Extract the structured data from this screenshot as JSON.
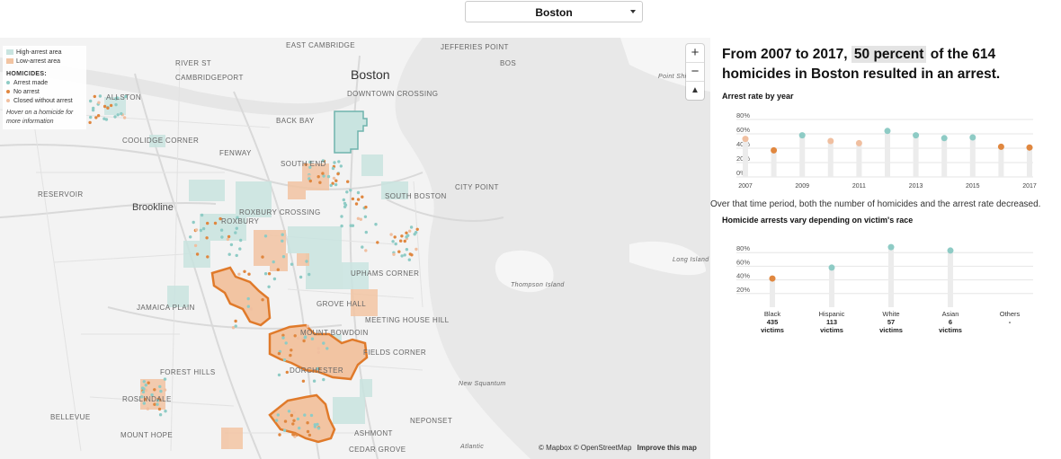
{
  "city_select": {
    "value": "Boston"
  },
  "legend": {
    "high_area": "High-arrest area",
    "low_area": "Low-arrest area",
    "homicides_header": "HOMICIDES:",
    "arrest_made": "Arrest made",
    "no_arrest": "No arrest",
    "closed": "Closed without arrest",
    "hint": "Hover on a homicide for more information"
  },
  "zoom": {
    "in": "+",
    "out": "−",
    "compass": "▲"
  },
  "attribution": {
    "mapbox": "© Mapbox",
    "osm": "© OpenStreetMap",
    "improve": "Improve this map"
  },
  "map_labels": {
    "city": "Boston",
    "brookline": "Brookline",
    "areas": [
      "EAST CAMBRIDGE",
      "JEFFERIES POINT",
      "RIVER ST",
      "CAMBRIDGEPORT",
      "ALLSTON",
      "BACK BAY",
      "DOWNTOWN CROSSING",
      "FENWAY",
      "SOUTH END",
      "SOUTH BOSTON",
      "CITY POINT",
      "ROXBURY",
      "ROXBURY CROSSING",
      "JAMAICA PLAIN",
      "UPHAMS CORNER",
      "GROVE HALL",
      "MEETING HOUSE HILL",
      "MOUNT BOWDOIN",
      "DORCHESTER",
      "FIELDS CORNER",
      "FOREST HILLS",
      "ROSLINDALE",
      "BELLEVUE",
      "MOUNT HOPE",
      "NEPONSET",
      "CEDAR GROVE",
      "ASHMONT",
      "RESERVOIR",
      "COOLIDGE CORNER",
      "BOS"
    ],
    "islands": [
      "Long Island",
      "Thompson Island",
      "Point Shirley",
      "Atlantic",
      "New Squantum"
    ]
  },
  "headline": {
    "prefix": "From 2007 to 2017,",
    "highlight": "50 percent",
    "suffix": "of the 614 homicides in Boston resulted in an arrest."
  },
  "year_chart_title": "Arrest rate by year",
  "trend_note": "Over that time period, both the number of homicides and the arrest rate decreased.",
  "race_chart_title": "Homicide arrests vary depending on victim's race",
  "colors": {
    "arrest": "#8ecbc5",
    "no_arrest": "#e0873f",
    "closed": "#f0bfa0",
    "stem": "#ececec",
    "grid": "#e6e6e6"
  },
  "chart_data": [
    {
      "type": "scatter",
      "title": "Arrest rate by year",
      "x": [
        2007,
        2008,
        2009,
        2010,
        2011,
        2012,
        2013,
        2014,
        2015,
        2016,
        2017
      ],
      "values": [
        53,
        37,
        58,
        50,
        47,
        64,
        58,
        54,
        55,
        42,
        41
      ],
      "status": [
        "closed",
        "no_arrest",
        "arrest",
        "closed",
        "closed",
        "arrest",
        "arrest",
        "arrest",
        "arrest",
        "no_arrest",
        "no_arrest"
      ],
      "x_tick_labels": [
        "2007",
        "2009",
        "2011",
        "2013",
        "2015",
        "2017"
      ],
      "y_tick_labels": [
        "80%",
        "60%",
        "40%",
        "20%",
        "0%"
      ],
      "ylim": [
        0,
        80
      ]
    },
    {
      "type": "scatter",
      "title": "Homicide arrests vary depending on victim's race",
      "categories": [
        "Black",
        "Hispanic",
        "White",
        "Asian",
        "Others"
      ],
      "counts": [
        "435",
        "113",
        "57",
        "6",
        "-"
      ],
      "count_unit": "victims",
      "values": [
        42,
        58,
        88,
        83,
        null
      ],
      "status": [
        "no_arrest",
        "arrest",
        "arrest",
        "arrest",
        null
      ],
      "y_tick_labels": [
        "80%",
        "60%",
        "40%",
        "20%"
      ],
      "ylim": [
        0,
        100
      ]
    }
  ]
}
